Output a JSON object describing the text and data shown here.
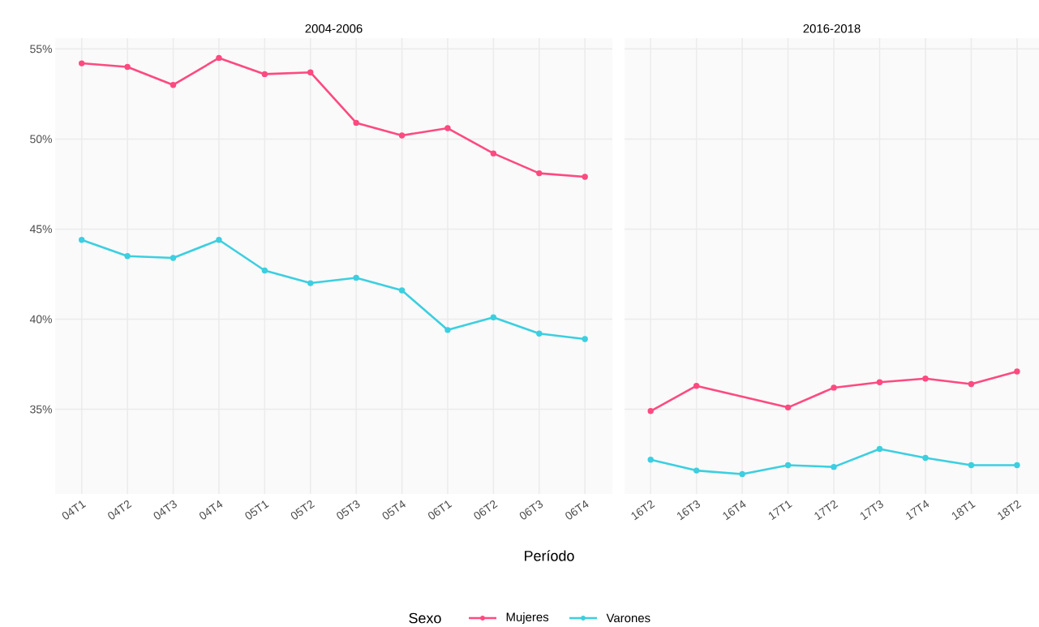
{
  "chart_data": [
    {
      "type": "line",
      "title": "2004-2006",
      "xlabel": "Período",
      "legend_title": "Sexo",
      "legend": "bottom",
      "grid": true,
      "marker": "circle",
      "line_style": "solid",
      "categories": [
        "04T1",
        "04T2",
        "04T3",
        "04T4",
        "05T1",
        "05T2",
        "05T3",
        "05T4",
        "06T1",
        "06T2",
        "06T3",
        "06T4"
      ],
      "ylim": [
        30.3,
        55.6
      ],
      "yticks": [
        {
          "value": 35,
          "label": "35%"
        },
        {
          "value": 40,
          "label": "40%"
        },
        {
          "value": 45,
          "label": "45%"
        },
        {
          "value": 50,
          "label": "50%"
        },
        {
          "value": 55,
          "label": "55%"
        }
      ],
      "series": [
        {
          "name": "Mujeres",
          "color": "#fd4a80",
          "values": [
            54.2,
            54.0,
            53.0,
            54.5,
            53.6,
            53.7,
            50.9,
            50.2,
            50.6,
            49.2,
            48.1,
            47.9
          ]
        },
        {
          "name": "Varones",
          "color": "#3ccfe0",
          "values": [
            44.4,
            43.5,
            43.4,
            44.4,
            42.7,
            42.0,
            42.3,
            41.6,
            39.4,
            40.1,
            39.2,
            38.9
          ]
        }
      ]
    },
    {
      "type": "line",
      "title": "2016-2018",
      "grid": true,
      "marker": "circle",
      "line_style": "solid",
      "tick_labels": "x",
      "categories": [
        "16T2",
        "16T3",
        "16T4",
        "17T1",
        "17T2",
        "17T3",
        "17T4",
        "18T1",
        "18T2"
      ],
      "ylim": [
        30.3,
        55.6
      ],
      "yticks": [
        {
          "value": 35,
          "label": null
        },
        {
          "value": 40,
          "label": null
        },
        {
          "value": 45,
          "label": null
        },
        {
          "value": 50,
          "label": null
        },
        {
          "value": 55,
          "label": null
        }
      ],
      "series": [
        {
          "color": "#fd4a80",
          "values": [
            34.9,
            36.3,
            null,
            35.1,
            36.2,
            36.5,
            36.7,
            36.4,
            37.1
          ]
        },
        {
          "color": "#3ccfe0",
          "values": [
            32.2,
            31.6,
            31.4,
            31.9,
            31.8,
            32.8,
            32.3,
            31.9,
            31.9
          ]
        }
      ]
    }
  ]
}
